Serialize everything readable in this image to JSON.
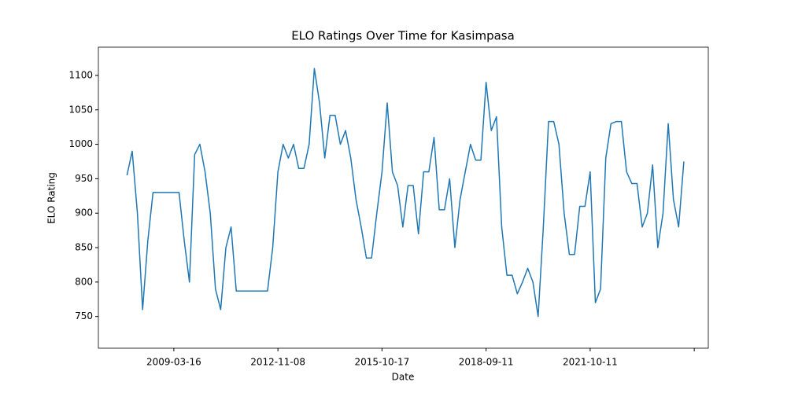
{
  "chart_data": {
    "type": "line",
    "title": "ELO Ratings Over Time for Kasimpasa",
    "x_label": "Date",
    "y_label": "ELO Rating",
    "series": [
      {
        "name": "Kasimpasa",
        "color": "#1f77b4",
        "values": [
          955,
          990,
          900,
          760,
          860,
          930,
          930,
          930,
          930,
          930,
          930,
          860,
          800,
          985,
          1000,
          960,
          900,
          790,
          760,
          850,
          880,
          787,
          787,
          787,
          787,
          787,
          787,
          787,
          850,
          960,
          1000,
          980,
          1000,
          965,
          965,
          1000,
          1110,
          1060,
          980,
          1042,
          1042,
          1000,
          1020,
          980,
          920,
          880,
          835,
          835,
          900,
          960,
          1060,
          960,
          940,
          880,
          940,
          940,
          870,
          960,
          960,
          1010,
          905,
          905,
          950,
          850,
          920,
          960,
          1000,
          977,
          977,
          1090,
          1020,
          1040,
          880,
          810,
          810,
          783,
          800,
          820,
          800,
          750,
          880,
          1033,
          1033,
          1000,
          900,
          840,
          840,
          910,
          910,
          960,
          770,
          790,
          980,
          1030,
          1033,
          1033,
          960,
          943,
          943,
          880,
          900,
          970,
          850,
          900,
          1030,
          920,
          880,
          975
        ]
      }
    ],
    "xlim": [
      -5.5,
      111.7
    ],
    "xticks": [
      {
        "value": 9,
        "label": "2009-03-16"
      },
      {
        "value": 29,
        "label": "2012-11-08"
      },
      {
        "value": 49,
        "label": "2015-10-17"
      },
      {
        "value": 69,
        "label": "2018-09-11"
      },
      {
        "value": 89,
        "label": "2021-10-11"
      },
      109
    ],
    "ylim": [
      704,
      1141
    ],
    "yticks": [
      750,
      800,
      850,
      900,
      950,
      1000,
      1050,
      1100
    ]
  }
}
